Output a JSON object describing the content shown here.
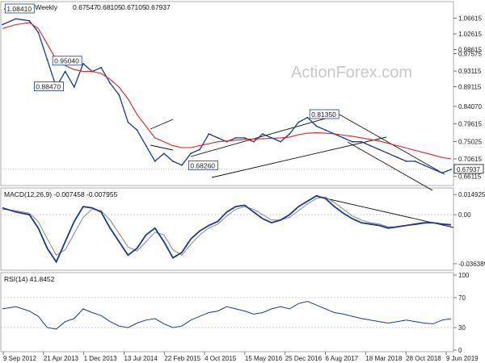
{
  "chart_data": [
    {
      "type": "line",
      "subtype": "ohlc-weekly",
      "title": "AUDUSD,Weekly",
      "header_values": [
        "0.67547",
        "0.68105",
        "0.67105",
        "0.67937"
      ],
      "watermark": "ActionForex.com",
      "ylim": [
        0.642,
        1.08
      ],
      "yticks": [
        "1.06615",
        "1.02615",
        "0.98615",
        "0.97575",
        "0.93115",
        "0.89115",
        "0.84070",
        "0.79615",
        "0.75025",
        "0.70615",
        "0.66115"
      ],
      "ytick_values": [
        1.06615,
        1.02615,
        0.98615,
        0.97575,
        0.93115,
        0.89115,
        0.8407,
        0.79615,
        0.75025,
        0.70615,
        0.66115
      ],
      "last_price_label": "0.67937",
      "last_price": 0.67937,
      "colors": {
        "price": "#1a3a8f",
        "ma": "#e02020",
        "channel": "#111111",
        "label_border": "#1a3a8f"
      },
      "annotations": [
        {
          "text": "1.08410",
          "x": 0.6,
          "y": 1.0841
        },
        {
          "text": "0.95040",
          "x": 11.2,
          "y": 0.9504
        },
        {
          "text": "0.88470",
          "x": 7.1,
          "y": 0.8847
        },
        {
          "text": "0.68260",
          "x": 41.5,
          "y": 0.6826
        },
        {
          "text": "0.81350",
          "x": 68.5,
          "y": 0.8135
        }
      ],
      "price_x": [
        0,
        3,
        6,
        8,
        10,
        12,
        14,
        16,
        18,
        20,
        22,
        24,
        26,
        28,
        30,
        32,
        34,
        36,
        38,
        40,
        42,
        44,
        46,
        48,
        50,
        52,
        54,
        56,
        58,
        60,
        62,
        64,
        66,
        68,
        70,
        72,
        74,
        76,
        78,
        80,
        82,
        84,
        86,
        88,
        90,
        92,
        94,
        96,
        98,
        100
      ],
      "price_y": [
        1.05,
        1.065,
        1.06,
        1.03,
        0.96,
        0.89,
        0.93,
        0.89,
        0.95,
        0.93,
        0.94,
        0.9,
        0.87,
        0.8,
        0.78,
        0.74,
        0.7,
        0.72,
        0.7,
        0.69,
        0.72,
        0.73,
        0.77,
        0.76,
        0.75,
        0.76,
        0.76,
        0.75,
        0.77,
        0.76,
        0.75,
        0.77,
        0.8,
        0.812,
        0.79,
        0.78,
        0.77,
        0.76,
        0.75,
        0.75,
        0.74,
        0.73,
        0.72,
        0.71,
        0.7,
        0.7,
        0.69,
        0.68,
        0.67,
        0.679
      ],
      "ma_y": [
        1.04,
        1.05,
        1.055,
        1.04,
        1.0,
        0.96,
        0.945,
        0.935,
        0.93,
        0.93,
        0.925,
        0.91,
        0.89,
        0.86,
        0.82,
        0.79,
        0.76,
        0.75,
        0.74,
        0.735,
        0.735,
        0.74,
        0.745,
        0.75,
        0.752,
        0.754,
        0.756,
        0.757,
        0.758,
        0.759,
        0.76,
        0.762,
        0.768,
        0.772,
        0.773,
        0.772,
        0.77,
        0.767,
        0.764,
        0.76,
        0.756,
        0.752,
        0.746,
        0.74,
        0.734,
        0.728,
        0.722,
        0.716,
        0.71,
        0.706
      ]
    },
    {
      "type": "line",
      "title": "MACD(12,26,9) -0.007458 -0.007955",
      "ylim": [
        -0.04,
        0.018
      ],
      "yticks": [
        "0.014925",
        "0.00",
        "-0.036389"
      ],
      "ytick_values": [
        0.014925,
        0.0,
        -0.036389
      ],
      "colors": {
        "macd": "#1a3a8f",
        "signal": "#888888",
        "trendline": "#111111"
      },
      "macd_y": [
        0.005,
        0.002,
        0.0,
        -0.01,
        -0.025,
        -0.035,
        -0.02,
        -0.005,
        0.006,
        0.005,
        0.002,
        -0.01,
        -0.02,
        -0.03,
        -0.025,
        -0.015,
        -0.01,
        -0.02,
        -0.032,
        -0.028,
        -0.018,
        -0.012,
        -0.008,
        -0.005,
        0.002,
        0.006,
        0.007,
        0.002,
        -0.003,
        -0.006,
        -0.004,
        0.0,
        0.006,
        0.01,
        0.014,
        0.012,
        0.006,
        0.001,
        -0.003,
        -0.006,
        -0.007,
        -0.008,
        -0.01,
        -0.009,
        -0.008,
        -0.007,
        -0.006,
        -0.006,
        -0.007,
        -0.0075
      ],
      "signal_y": [
        0.004,
        0.003,
        0.001,
        -0.005,
        -0.018,
        -0.03,
        -0.026,
        -0.014,
        -0.002,
        0.004,
        0.003,
        -0.004,
        -0.014,
        -0.024,
        -0.027,
        -0.02,
        -0.013,
        -0.015,
        -0.026,
        -0.03,
        -0.022,
        -0.015,
        -0.01,
        -0.007,
        -0.001,
        0.004,
        0.006,
        0.004,
        0.0,
        -0.004,
        -0.004,
        -0.002,
        0.003,
        0.008,
        0.012,
        0.013,
        0.009,
        0.004,
        -0.001,
        -0.004,
        -0.006,
        -0.007,
        -0.009,
        -0.009,
        -0.008,
        -0.0075,
        -0.0065,
        -0.006,
        -0.0068,
        -0.00795
      ]
    },
    {
      "type": "line",
      "title": "RSI(14) 41.8452",
      "ylim": [
        0,
        100
      ],
      "yticks": [
        "100",
        "70",
        "30",
        "0"
      ],
      "ytick_values": [
        100,
        70,
        30,
        0
      ],
      "x_ticklabels": [
        "9 Sep 2012",
        "21 Apr 2013",
        "1 Dec 2013",
        "13 Jul 2014",
        "22 Feb 2015",
        "4 Oct 2015",
        "15 May 2016",
        "25 Dec 2016",
        "6 Aug 2017",
        "18 Mar 2018",
        "28 Oct 2018",
        "9 Jun 2019"
      ],
      "colors": {
        "rsi": "#1a3a8f"
      },
      "rsi_y": [
        55,
        58,
        52,
        45,
        30,
        28,
        38,
        42,
        55,
        50,
        46,
        38,
        32,
        30,
        36,
        40,
        42,
        35,
        30,
        32,
        40,
        45,
        50,
        52,
        58,
        55,
        52,
        48,
        50,
        55,
        58,
        55,
        62,
        65,
        60,
        55,
        50,
        48,
        45,
        42,
        40,
        38,
        36,
        38,
        40,
        38,
        36,
        35,
        40,
        41.8452
      ]
    }
  ]
}
